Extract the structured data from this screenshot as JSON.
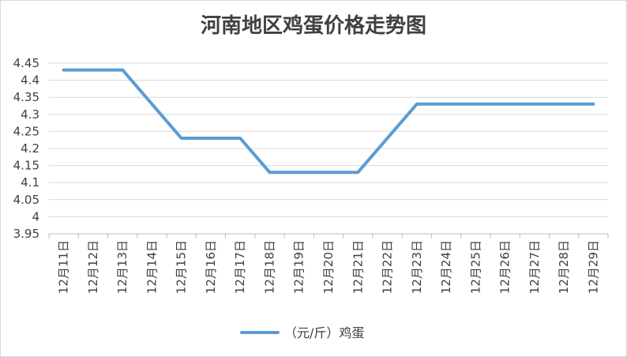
{
  "chart_data": {
    "type": "line",
    "title": "河南地区鸡蛋价格走势图",
    "categories": [
      "12月11日",
      "12月12日",
      "12月13日",
      "12月14日",
      "12月15日",
      "12月16日",
      "12月17日",
      "12月18日",
      "12月19日",
      "12月20日",
      "12月21日",
      "12月22日",
      "12月23日",
      "12月24日",
      "12月25日",
      "12月26日",
      "12月27日",
      "12月28日",
      "12月29日"
    ],
    "series": [
      {
        "name": "（元/斤）鸡蛋",
        "values": [
          4.43,
          4.43,
          4.43,
          null,
          4.23,
          4.23,
          4.23,
          4.13,
          4.13,
          4.13,
          4.13,
          null,
          4.33,
          4.33,
          4.33,
          4.33,
          4.33,
          4.33,
          4.33
        ],
        "color": "#5b9bd5"
      }
    ],
    "ylim": [
      3.95,
      4.45
    ],
    "yticks": [
      "4.45",
      "4.4",
      "4.35",
      "4.3",
      "4.25",
      "4.2",
      "4.15",
      "4.1",
      "4.05",
      "4",
      "3.95"
    ],
    "grid": true,
    "legend_position": "bottom",
    "gridline_color": "#d9d9d9"
  }
}
